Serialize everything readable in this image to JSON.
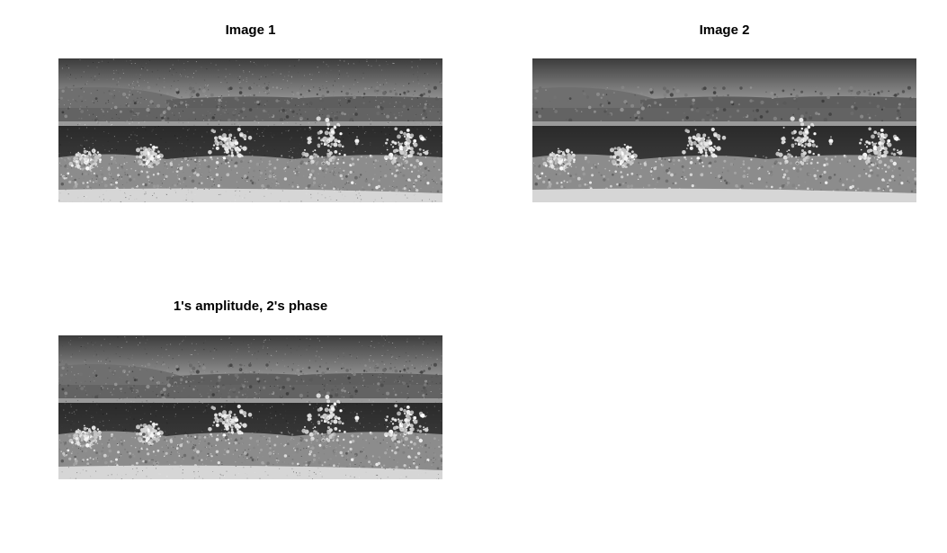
{
  "panels": [
    {
      "title": "Image 1",
      "variant": "grainy"
    },
    {
      "title": "Image 2",
      "variant": "clean"
    },
    {
      "title": "1's amplitude, 2's phase",
      "variant": "grainy"
    }
  ]
}
